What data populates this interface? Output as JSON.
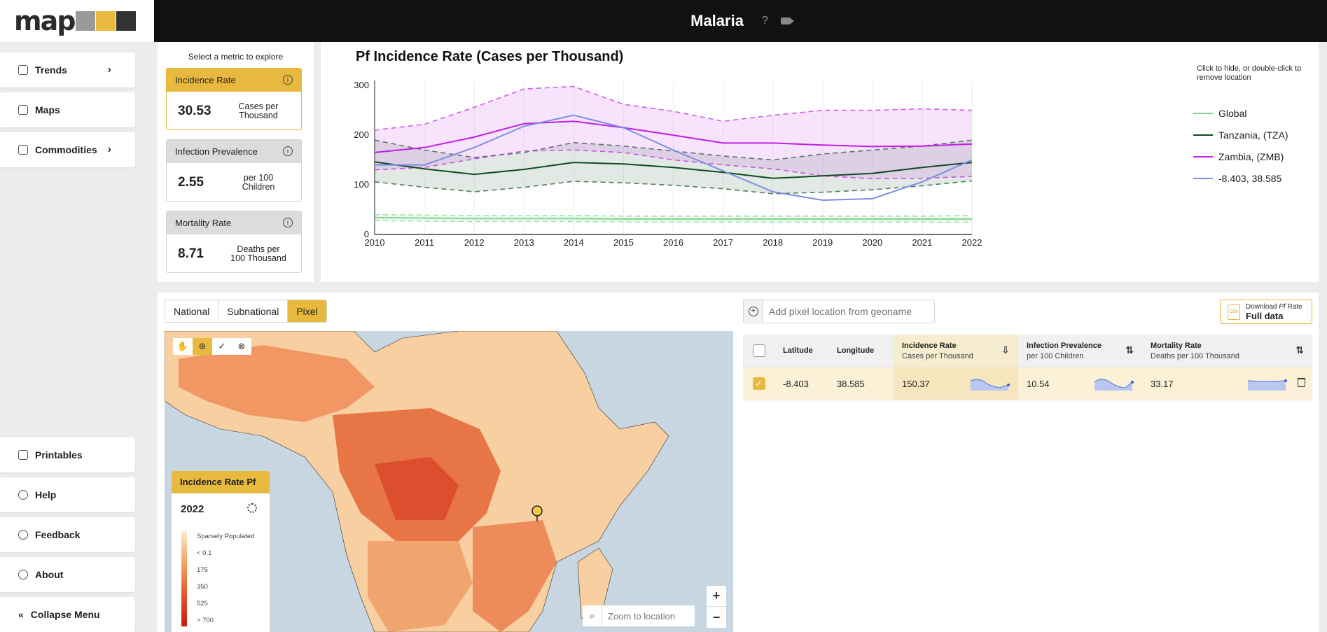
{
  "app": {
    "logo_text": "map",
    "title": "Malaria",
    "help_symbol": "?"
  },
  "sidebar": {
    "items": [
      {
        "label": "Trends",
        "icon": "home-icon",
        "has_chevron": true
      },
      {
        "label": "Maps",
        "icon": "map-icon"
      },
      {
        "label": "Commodities",
        "icon": "list-icon",
        "has_chevron": true
      }
    ],
    "bottom_items": [
      {
        "label": "Printables",
        "icon": "printer-icon"
      },
      {
        "label": "Help",
        "icon": "help-icon"
      },
      {
        "label": "Feedback",
        "icon": "feedback-icon"
      },
      {
        "label": "About",
        "icon": "info-icon"
      },
      {
        "label": "Collapse Menu",
        "icon": "collapse-icon"
      }
    ],
    "chevron": "›"
  },
  "metrics": {
    "hint": "Select a metric to explore",
    "cards": [
      {
        "name": "Incidence Rate",
        "value": "30.53",
        "unit_line1": "Cases per",
        "unit_line2": "Thousand",
        "active": true
      },
      {
        "name": "Infection Prevalence",
        "value": "2.55",
        "unit_line1": "per 100",
        "unit_line2": "Children",
        "active": false
      },
      {
        "name": "Mortality Rate",
        "value": "8.71",
        "unit_line1": "Deaths per",
        "unit_line2": "100 Thousand",
        "active": false
      }
    ]
  },
  "chart_data": {
    "type": "line",
    "title": "Pf Incidence Rate (Cases per Thousand)",
    "hint_line1": "Click to hide, or double-click",
    "hint_line2": "to remove location",
    "x": [
      2010,
      2011,
      2012,
      2013,
      2014,
      2015,
      2016,
      2017,
      2018,
      2019,
      2020,
      2021,
      2022
    ],
    "ylim": [
      0,
      310
    ],
    "yticks": [
      0,
      100,
      200,
      300
    ],
    "grid": true,
    "legend_position": "right",
    "series": [
      {
        "name": "Global",
        "color": "#7fd78f",
        "values": [
          34,
          33,
          32,
          32,
          32,
          31,
          31,
          31,
          31,
          31,
          31,
          31,
          31
        ],
        "upper": [
          40,
          39,
          38,
          38,
          38,
          37,
          37,
          37,
          37,
          37,
          37,
          37,
          38
        ],
        "lower": [
          28,
          27,
          26,
          26,
          26,
          25,
          25,
          25,
          25,
          25,
          25,
          25,
          25
        ]
      },
      {
        "name": "Tanzania, (TZA)",
        "color": "#0f4a22",
        "values": [
          146,
          132,
          121,
          131,
          145,
          142,
          135,
          125,
          113,
          118,
          123,
          135,
          145
        ],
        "upper": [
          190,
          170,
          155,
          165,
          185,
          178,
          168,
          158,
          150,
          162,
          170,
          178,
          190
        ],
        "lower": [
          106,
          95,
          86,
          95,
          107,
          104,
          99,
          92,
          82,
          85,
          90,
          98,
          108
        ]
      },
      {
        "name": "Zambia, (ZMB)",
        "color": "#c11de6",
        "values": [
          165,
          175,
          196,
          223,
          228,
          215,
          200,
          184,
          184,
          180,
          177,
          178,
          182
        ],
        "upper": [
          210,
          222,
          256,
          293,
          298,
          262,
          248,
          228,
          240,
          250,
          250,
          253,
          250
        ],
        "lower": [
          130,
          135,
          152,
          168,
          170,
          165,
          150,
          140,
          132,
          118,
          112,
          113,
          117
        ]
      },
      {
        "name": "-8.403, 38.585",
        "color": "#7d8ee0",
        "values": [
          140,
          140,
          175,
          218,
          240,
          215,
          170,
          128,
          86,
          69,
          72,
          106,
          150
        ]
      }
    ]
  },
  "map_panel": {
    "tabs": [
      {
        "label": "National",
        "active": false
      },
      {
        "label": "Subnational",
        "active": false
      },
      {
        "label": "Pixel",
        "active": true
      }
    ],
    "tools": [
      "pan-icon",
      "add-point-icon",
      "check-icon",
      "clear-icon"
    ],
    "legend": {
      "title": "Incidence Rate Pf",
      "year": "2022",
      "labels": [
        "Sparsely Populated",
        "< 0.1",
        "175",
        "350",
        "525",
        "> 700"
      ]
    },
    "zoom_placeholder": "Zoom to location",
    "zoom_in": "+",
    "zoom_out": "−"
  },
  "pixel_table": {
    "search_placeholder": "Add pixel location from geoname",
    "download": {
      "line1": "Download ",
      "line1_italic": "Pf",
      "line1_rest": " Rate",
      "line2": "Full data",
      "file_label": "CSV"
    },
    "headers": {
      "latitude": "Latitude",
      "longitude": "Longitude",
      "incidence": {
        "label": "Incidence Rate",
        "sub": "Cases per Thousand"
      },
      "infection": {
        "label": "Infection Prevalence",
        "sub": "per 100 Children"
      },
      "mortality": {
        "label": "Mortality Rate",
        "sub": "Deaths per 100 Thousand"
      }
    },
    "rows": [
      {
        "latitude": "-8.403",
        "longitude": "38.585",
        "incidence": "150.37",
        "infection": "10.54",
        "mortality": "33.17",
        "selected": true
      }
    ]
  },
  "colors": {
    "accent": "#e8b93f",
    "topbar": "#111111",
    "map_sea": "#c8d6e2"
  }
}
